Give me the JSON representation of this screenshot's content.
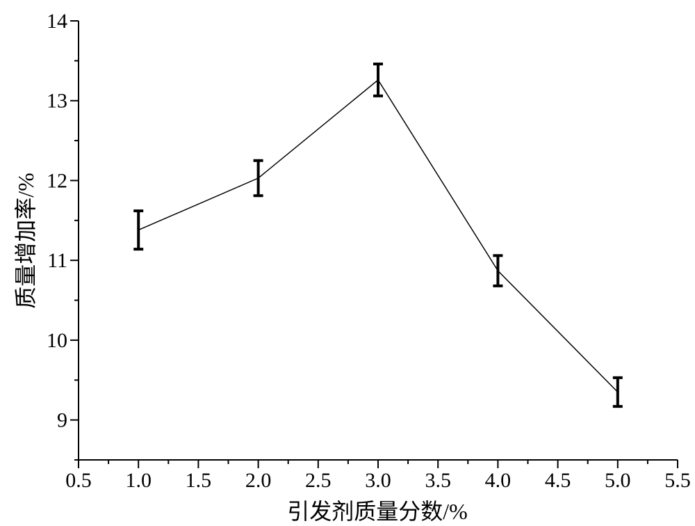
{
  "chart_data": {
    "type": "line",
    "xlabel": "引发剂质量分数/%",
    "ylabel": "质量增加率/%",
    "xlim": [
      0.5,
      5.5
    ],
    "ylim": [
      8.5,
      14
    ],
    "x_ticks": [
      "0.5",
      "1.0",
      "1.5",
      "2.0",
      "2.5",
      "3.0",
      "3.5",
      "4.0",
      "4.5",
      "5.0",
      "5.5"
    ],
    "y_ticks": [
      "9",
      "10",
      "11",
      "12",
      "13",
      "14"
    ],
    "grid": false,
    "legend": "none",
    "series": [
      {
        "x": [
          1.0,
          2.0,
          3.0,
          4.0,
          5.0
        ],
        "y": [
          11.38,
          12.03,
          13.26,
          10.87,
          9.35
        ],
        "error": [
          0.24,
          0.22,
          0.2,
          0.19,
          0.18
        ],
        "color": "#000000"
      }
    ]
  }
}
